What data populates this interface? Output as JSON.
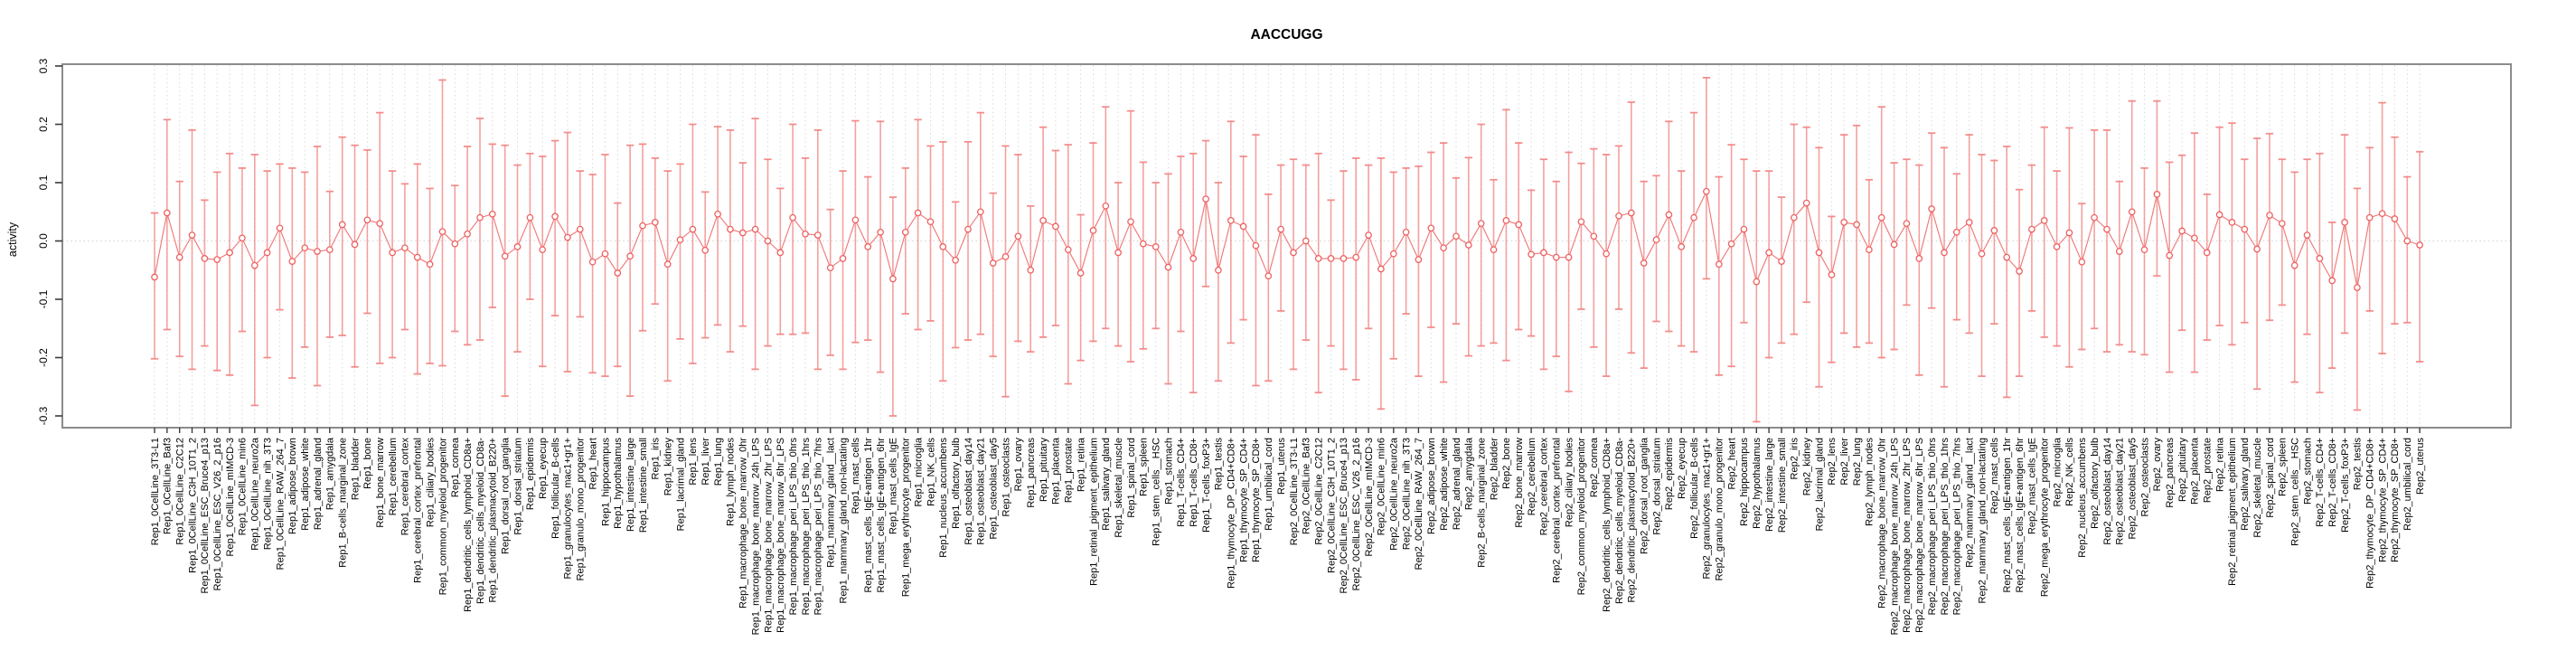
{
  "title": "AACCUGG",
  "colors": {
    "point_stroke": "#ee6161",
    "line": "#ee6a6a",
    "errorbar": "#f2807f",
    "grid_dotted": "#d9d9d9",
    "zero_line": "#d2d2d2",
    "axis_box": "#8c8c8c",
    "tick": "#3a3a3a",
    "text": "#000000",
    "background": "#ffffff"
  },
  "chart_data": {
    "type": "line",
    "subtype": "points-with-error-bars",
    "title": "AACCUGG",
    "xlabel": "",
    "ylabel": "activity",
    "ylim": [
      -0.32,
      0.303
    ],
    "yticks": [
      0.3,
      0.2,
      0.1,
      0.0,
      -0.1,
      -0.2,
      -0.3
    ],
    "ytick_labels": [
      "0.3",
      "0.2",
      "0.1",
      "0.0",
      "-0.1",
      "-0.2",
      "-0.3"
    ],
    "grid": "dotted vertical line at every category; dotted horizontal line at y=0",
    "legend": "none",
    "marker": "open-circle",
    "categories": [
      "Rep1_0CellLine_3T3-L1",
      "Rep1_0CellLine_Baf3",
      "Rep1_0CellLine_C2C12",
      "Rep1_0CellLine_C3H_10T1_2",
      "Rep1_0CellLine_ESC_Bruce4_p13",
      "Rep1_0CellLine_ESC_V26_2_p16",
      "Rep1_0CellLine_mIMCD-3",
      "Rep1_0CellLine_min6",
      "Rep1_0CellLine_neuro2a",
      "Rep1_0CellLine_nih_3T3",
      "Rep1_0CellLine_RAW_264_7",
      "Rep1_adipose_brown",
      "Rep1_adipose_white",
      "Rep1_adrenal_gland",
      "Rep1_amygdala",
      "Rep1_B-cells_marginal_zone",
      "Rep1_bladder",
      "Rep1_bone",
      "Rep1_bone_marrow",
      "Rep1_cerebellum",
      "Rep1_cerebral_cortex",
      "Rep1_cerebral_cortex_prefrontal",
      "Rep1_ciliary_bodies",
      "Rep1_common_myeloid_progenitor",
      "Rep1_cornea",
      "Rep1_dendritic_cells_lymphoid_CD8a+",
      "Rep1_dendritic_cells_myeloid_CD8a-",
      "Rep1_dendritic_plasmacytoid_B220+",
      "Rep1_dorsal_root_ganglia",
      "Rep1_dorsal_striatum",
      "Rep1_epidermis",
      "Rep1_eyecup",
      "Rep1_follicular_B-cells",
      "Rep1_granulocytes_mac1+gr1+",
      "Rep1_granulo_mono_progenitor",
      "Rep1_heart",
      "Rep1_hippocampus",
      "Rep1_hypothalamus",
      "Rep1_intestine_large",
      "Rep1_intestine_small",
      "Rep1_iris",
      "Rep1_kidney",
      "Rep1_lacrimal_gland",
      "Rep1_lens",
      "Rep1_liver",
      "Rep1_lung",
      "Rep1_lymph_nodes",
      "Rep1_macrophage_bone_marrow_0hr",
      "Rep1_macrophage_bone_marrow_24h_LPS",
      "Rep1_macrophage_bone_marrow_2hr_LPS",
      "Rep1_macrophage_bone_marrow_6hr_LPS",
      "Rep1_macrophage_peri_LPS_thio_0hrs",
      "Rep1_macrophage_peri_LPS_thio_1hrs",
      "Rep1_macrophage_peri_LPS_thio_7hrs",
      "Rep1_mammary_gland__lact",
      "Rep1_mammary_gland_non-lactating",
      "Rep1_mast_cells",
      "Rep1_mast_cells_IgE+antigen_1hr",
      "Rep1_mast_cells_IgE+antigen_6hr",
      "Rep1_mast_cells_IgE",
      "Rep1_mega_erythrocyte_progenitor",
      "Rep1_microglia",
      "Rep1_NK_cells",
      "Rep1_nucleus_accumbens",
      "Rep1_olfactory_bulb",
      "Rep1_osteoblast_day14",
      "Rep1_osteoblast_day21",
      "Rep1_osteoblast_day5",
      "Rep1_osteoclasts",
      "Rep1_ovary",
      "Rep1_pancreas",
      "Rep1_pituitary",
      "Rep1_placenta",
      "Rep1_prostate",
      "Rep1_retina",
      "Rep1_retinal_pigment_epithelium",
      "Rep1_salivary_gland",
      "Rep1_skeletal_muscle",
      "Rep1_spinal_cord",
      "Rep1_spleen",
      "Rep1_stem_cells__HSC",
      "Rep1_stomach",
      "Rep1_T-cells_CD4+",
      "Rep1_T-cells_CD8+",
      "Rep1_T-cells_foxP3+",
      "Rep1_testis",
      "Rep1_thymocyte_DP_CD4+CD8+",
      "Rep1_thymocyte_SP_CD4+",
      "Rep1_thymocyte_SP_CD8+",
      "Rep1_umbilical_cord",
      "Rep1_uterus",
      "Rep2_0CellLine_3T3-L1",
      "Rep2_0CellLine_Baf3",
      "Rep2_0CellLine_C2C12",
      "Rep2_0CellLine_C3H_10T1_2",
      "Rep2_0CellLine_ESC_Bruce4_p13",
      "Rep2_0CellLine_ESC_V26_2_p16",
      "Rep2_0CellLine_mIMCD-3",
      "Rep2_0CellLine_min6",
      "Rep2_0CellLine_neuro2a",
      "Rep2_0CellLine_nih_3T3",
      "Rep2_0CellLine_RAW_264_7",
      "Rep2_adipose_brown",
      "Rep2_adipose_white",
      "Rep2_adrenal_gland",
      "Rep2_amygdala",
      "Rep2_B-cells_marginal_zone",
      "Rep2_bladder",
      "Rep2_bone",
      "Rep2_bone_marrow",
      "Rep2_cerebellum",
      "Rep2_cerebral_cortex",
      "Rep2_cerebral_cortex_prefrontal",
      "Rep2_ciliary_bodies",
      "Rep2_common_myeloid_progenitor",
      "Rep2_cornea",
      "Rep2_dendritic_cells_lymphoid_CD8a+",
      "Rep2_dendritic_cells_myeloid_CD8a-",
      "Rep2_dendritic_plasmacytoid_B220+",
      "Rep2_dorsal_root_ganglia",
      "Rep2_dorsal_striatum",
      "Rep2_epidermis",
      "Rep2_eyecup",
      "Rep2_follicular_B-cells",
      "Rep2_granulocytes_mac1+gr1+",
      "Rep2_granulo_mono_progenitor",
      "Rep2_heart",
      "Rep2_hippocampus",
      "Rep2_hypothalamus",
      "Rep2_intestine_large",
      "Rep2_intestine_small",
      "Rep2_iris",
      "Rep2_kidney",
      "Rep2_lacrimal_gland",
      "Rep2_lens",
      "Rep2_liver",
      "Rep2_lung",
      "Rep2_lymph_nodes",
      "Rep2_macrophage_bone_marrow_0hr",
      "Rep2_macrophage_bone_marrow_24h_LPS",
      "Rep2_macrophage_bone_marrow_2hr_LPS",
      "Rep2_macrophage_bone_marrow_6hr_LPS",
      "Rep2_macrophage_peri_LPS_thio_0hrs",
      "Rep2_macrophage_peri_LPS_thio_1hrs",
      "Rep2_macrophage_peri_LPS_thio_7hrs",
      "Rep2_mammary_gland__lact",
      "Rep2_mammary_gland_non-lactating",
      "Rep2_mast_cells",
      "Rep2_mast_cells_IgE+antigen_1hr",
      "Rep2_mast_cells_IgE+antigen_6hr",
      "Rep2_mast_cells_IgE",
      "Rep2_mega_erythrocyte_progenitor",
      "Rep2_microglia",
      "Rep2_NK_cells",
      "Rep2_nucleus_accumbens",
      "Rep2_olfactory_bulb",
      "Rep2_osteoblast_day14",
      "Rep2_osteoblast_day21",
      "Rep2_osteoblast_day5",
      "Rep2_osteoclasts",
      "Rep2_ovary",
      "Rep2_pancreas",
      "Rep2_pituitary",
      "Rep2_placenta",
      "Rep2_prostate",
      "Rep2_retina",
      "Rep2_retinal_pigment_epithelium",
      "Rep2_salivary_gland",
      "Rep2_skeletal_muscle",
      "Rep2_spinal_cord",
      "Rep2_spleen",
      "Rep2_stem_cells__HSC",
      "Rep2_stomach",
      "Rep2_T-cells_CD4+",
      "Rep2_T-cells_CD8+",
      "Rep2_T-cells_foxP3+",
      "Rep2_testis",
      "Rep2_thymocyte_DP_CD4+CD8+",
      "Rep2_thymocyte_SP_CD4+",
      "Rep2_thymocyte_SP_CD8+",
      "Rep2_umbilical_cord",
      "Rep2_uterus"
    ],
    "series": [
      {
        "name": "activity",
        "mean": [
          -0.062,
          0.048,
          -0.028,
          0.01,
          -0.03,
          -0.032,
          -0.02,
          0.005,
          -0.042,
          -0.02,
          0.022,
          -0.035,
          -0.012,
          -0.018,
          -0.015,
          0.028,
          -0.006,
          0.036,
          0.03,
          -0.02,
          -0.012,
          -0.028,
          -0.04,
          0.016,
          -0.005,
          0.012,
          0.04,
          0.046,
          -0.026,
          -0.01,
          0.04,
          -0.015,
          0.042,
          0.006,
          0.02,
          -0.036,
          -0.022,
          -0.055,
          -0.026,
          0.026,
          0.032,
          -0.04,
          0.002,
          0.02,
          -0.016,
          0.046,
          0.02,
          0.014,
          0.02,
          0.0,
          -0.02,
          0.04,
          0.012,
          0.01,
          -0.046,
          -0.03,
          0.036,
          -0.01,
          0.015,
          -0.065,
          0.015,
          0.048,
          0.033,
          -0.01,
          -0.033,
          0.02,
          0.05,
          -0.038,
          -0.027,
          0.008,
          -0.05,
          0.035,
          0.025,
          -0.015,
          -0.055,
          0.018,
          0.06,
          -0.02,
          0.033,
          -0.005,
          -0.01,
          -0.045,
          0.015,
          -0.03,
          0.072,
          -0.05,
          0.035,
          0.025,
          -0.008,
          -0.06,
          0.02,
          -0.02,
          0.0,
          -0.03,
          -0.03,
          -0.03,
          -0.028,
          0.01,
          -0.048,
          -0.022,
          0.015,
          -0.032,
          0.022,
          -0.012,
          0.008,
          -0.007,
          0.03,
          -0.015,
          0.035,
          0.028,
          -0.023,
          -0.02,
          -0.028,
          -0.028,
          0.033,
          0.008,
          -0.022,
          0.043,
          0.048,
          -0.038,
          0.002,
          0.045,
          -0.01,
          0.04,
          0.085,
          -0.04,
          -0.005,
          0.02,
          -0.07,
          -0.02,
          -0.035,
          0.04,
          0.065,
          -0.02,
          -0.058,
          0.032,
          0.028,
          -0.015,
          0.04,
          -0.006,
          0.03,
          -0.03,
          0.055,
          -0.02,
          0.015,
          0.032,
          -0.022,
          0.018,
          -0.028,
          -0.052,
          0.02,
          0.035,
          -0.01,
          0.014,
          -0.036,
          0.04,
          0.02,
          -0.018,
          0.05,
          -0.015,
          0.08,
          -0.025,
          0.017,
          0.005,
          -0.02,
          0.045,
          0.032,
          0.02,
          -0.014,
          0.044,
          0.03,
          -0.042,
          0.01,
          -0.03,
          -0.068,
          0.032,
          -0.08,
          0.04,
          0.047,
          0.038,
          0.0,
          -0.007
        ],
        "err_down": [
          0.14,
          0.2,
          0.17,
          0.23,
          0.15,
          0.19,
          0.21,
          0.16,
          0.24,
          0.18,
          0.14,
          0.2,
          0.17,
          0.23,
          0.15,
          0.19,
          0.21,
          0.16,
          0.24,
          0.18,
          0.14,
          0.2,
          0.17,
          0.23,
          0.15,
          0.19,
          0.21,
          0.16,
          0.24,
          0.18,
          0.14,
          0.2,
          0.17,
          0.23,
          0.15,
          0.19,
          0.21,
          0.16,
          0.24,
          0.18,
          0.14,
          0.2,
          0.17,
          0.23,
          0.15,
          0.19,
          0.21,
          0.16,
          0.24,
          0.18,
          0.14,
          0.2,
          0.17,
          0.23,
          0.15,
          0.19,
          0.21,
          0.16,
          0.24,
          0.235,
          0.14,
          0.2,
          0.17,
          0.23,
          0.15,
          0.19,
          0.21,
          0.16,
          0.24,
          0.18,
          0.14,
          0.2,
          0.17,
          0.23,
          0.15,
          0.19,
          0.21,
          0.16,
          0.24,
          0.18,
          0.14,
          0.2,
          0.17,
          0.23,
          0.15,
          0.19,
          0.21,
          0.16,
          0.24,
          0.18,
          0.14,
          0.2,
          0.17,
          0.23,
          0.15,
          0.19,
          0.21,
          0.16,
          0.24,
          0.18,
          0.14,
          0.2,
          0.17,
          0.23,
          0.15,
          0.19,
          0.21,
          0.16,
          0.24,
          0.18,
          0.14,
          0.2,
          0.17,
          0.23,
          0.15,
          0.19,
          0.21,
          0.16,
          0.24,
          0.18,
          0.14,
          0.2,
          0.17,
          0.23,
          0.15,
          0.19,
          0.21,
          0.16,
          0.24,
          0.18,
          0.14,
          0.2,
          0.17,
          0.23,
          0.15,
          0.19,
          0.21,
          0.16,
          0.24,
          0.18,
          0.14,
          0.2,
          0.17,
          0.23,
          0.15,
          0.19,
          0.21,
          0.16,
          0.24,
          0.18,
          0.14,
          0.2,
          0.17,
          0.23,
          0.15,
          0.19,
          0.21,
          0.16,
          0.24,
          0.18,
          0.14,
          0.2,
          0.17,
          0.23,
          0.15,
          0.19,
          0.21,
          0.16,
          0.24,
          0.18,
          0.14,
          0.2,
          0.17,
          0.23,
          0.15,
          0.19,
          0.21,
          0.16,
          0.24,
          0.18,
          0.14,
          0.2
        ],
        "err_up": [
          0.11,
          0.16,
          0.13,
          0.18,
          0.1,
          0.15,
          0.17,
          0.12,
          0.19,
          0.14,
          0.11,
          0.16,
          0.13,
          0.18,
          0.1,
          0.15,
          0.17,
          0.12,
          0.19,
          0.14,
          0.11,
          0.16,
          0.13,
          0.26,
          0.1,
          0.15,
          0.17,
          0.12,
          0.19,
          0.14,
          0.11,
          0.16,
          0.13,
          0.18,
          0.1,
          0.15,
          0.17,
          0.12,
          0.19,
          0.14,
          0.11,
          0.16,
          0.13,
          0.18,
          0.1,
          0.15,
          0.17,
          0.12,
          0.19,
          0.14,
          0.11,
          0.16,
          0.13,
          0.18,
          0.1,
          0.15,
          0.17,
          0.12,
          0.19,
          0.14,
          0.11,
          0.16,
          0.13,
          0.18,
          0.1,
          0.15,
          0.17,
          0.12,
          0.19,
          0.14,
          0.11,
          0.16,
          0.13,
          0.18,
          0.1,
          0.15,
          0.17,
          0.12,
          0.19,
          0.14,
          0.11,
          0.16,
          0.13,
          0.18,
          0.1,
          0.15,
          0.17,
          0.12,
          0.19,
          0.14,
          0.11,
          0.16,
          0.13,
          0.18,
          0.1,
          0.15,
          0.17,
          0.12,
          0.19,
          0.14,
          0.11,
          0.16,
          0.13,
          0.18,
          0.1,
          0.15,
          0.17,
          0.12,
          0.19,
          0.14,
          0.11,
          0.16,
          0.13,
          0.18,
          0.1,
          0.15,
          0.17,
          0.12,
          0.19,
          0.14,
          0.11,
          0.16,
          0.13,
          0.18,
          0.195,
          0.15,
          0.17,
          0.12,
          0.19,
          0.14,
          0.11,
          0.16,
          0.13,
          0.18,
          0.1,
          0.15,
          0.17,
          0.12,
          0.19,
          0.14,
          0.11,
          0.16,
          0.13,
          0.18,
          0.1,
          0.15,
          0.17,
          0.12,
          0.19,
          0.14,
          0.11,
          0.16,
          0.13,
          0.18,
          0.1,
          0.15,
          0.17,
          0.12,
          0.19,
          0.14,
          0.16,
          0.16,
          0.13,
          0.18,
          0.1,
          0.15,
          0.17,
          0.12,
          0.19,
          0.14,
          0.11,
          0.16,
          0.13,
          0.18,
          0.1,
          0.15,
          0.17,
          0.12,
          0.19,
          0.14,
          0.11,
          0.16
        ]
      }
    ]
  }
}
